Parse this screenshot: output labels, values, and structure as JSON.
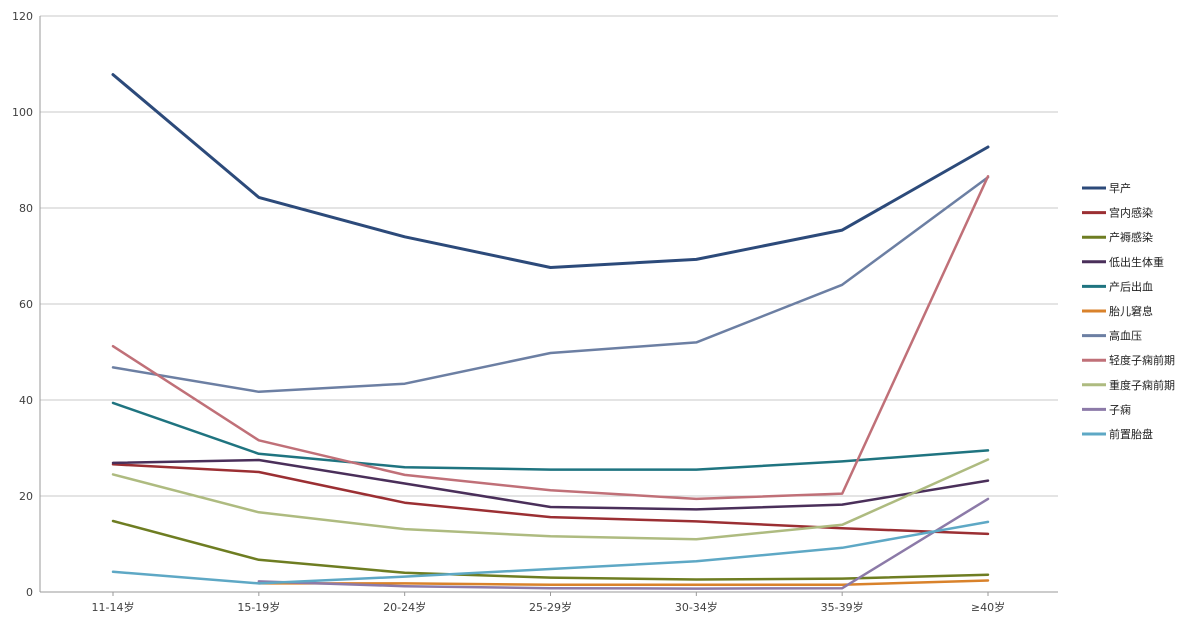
{
  "chart_data": {
    "type": "line",
    "title": "",
    "xlabel": "",
    "ylabel": "",
    "ylim": [
      0,
      120
    ],
    "yticks": [
      0,
      20,
      40,
      60,
      80,
      100,
      120
    ],
    "grid": true,
    "legend_position": "right",
    "categories": [
      "11-14岁",
      "15-19岁",
      "20-24岁",
      "25-29岁",
      "30-34岁",
      "35-39岁",
      "≥40岁"
    ],
    "series": [
      {
        "name": "早产",
        "color": "#2c4a7a",
        "values": [
          107.8,
          82.2,
          74.0,
          67.6,
          69.3,
          75.4,
          92.7
        ]
      },
      {
        "name": "宫内感染",
        "color": "#9b2f33",
        "values": [
          26.6,
          25.0,
          18.6,
          15.6,
          14.7,
          13.3,
          12.1
        ]
      },
      {
        "name": "产褥感染",
        "color": "#6e7d22",
        "values": [
          14.8,
          6.7,
          4.0,
          3.0,
          2.6,
          2.8,
          3.6
        ]
      },
      {
        "name": "低出生体重",
        "color": "#4a2f5a",
        "values": [
          26.9,
          27.5,
          22.6,
          17.7,
          17.2,
          18.2,
          23.2
        ]
      },
      {
        "name": "产后出血",
        "color": "#1f7480",
        "values": [
          39.4,
          28.8,
          26.0,
          25.5,
          25.5,
          27.2,
          29.5
        ]
      },
      {
        "name": "胎儿窘息",
        "color": "#d9822b",
        "values": [
          null,
          1.8,
          1.8,
          1.5,
          1.5,
          1.5,
          2.4
        ]
      },
      {
        "name": "高血压",
        "color": "#6c7fa3",
        "values": [
          46.8,
          41.7,
          43.4,
          49.8,
          52.0,
          64.0,
          86.4
        ]
      },
      {
        "name": "轻度子痫前期",
        "color": "#c07078",
        "values": [
          51.2,
          31.6,
          24.4,
          21.2,
          19.4,
          20.5,
          86.6
        ]
      },
      {
        "name": "重度子痫前期",
        "color": "#aebb80",
        "values": [
          24.5,
          16.6,
          13.1,
          11.6,
          11.0,
          14.0,
          27.6
        ]
      },
      {
        "name": "子痫",
        "color": "#8c7aa8",
        "values": [
          null,
          2.2,
          1.2,
          0.8,
          0.7,
          0.8,
          19.4
        ]
      },
      {
        "name": "前置胎盘",
        "color": "#5ea8c5",
        "values": [
          4.2,
          1.8,
          3.2,
          4.8,
          6.4,
          9.2,
          14.6
        ]
      }
    ]
  }
}
